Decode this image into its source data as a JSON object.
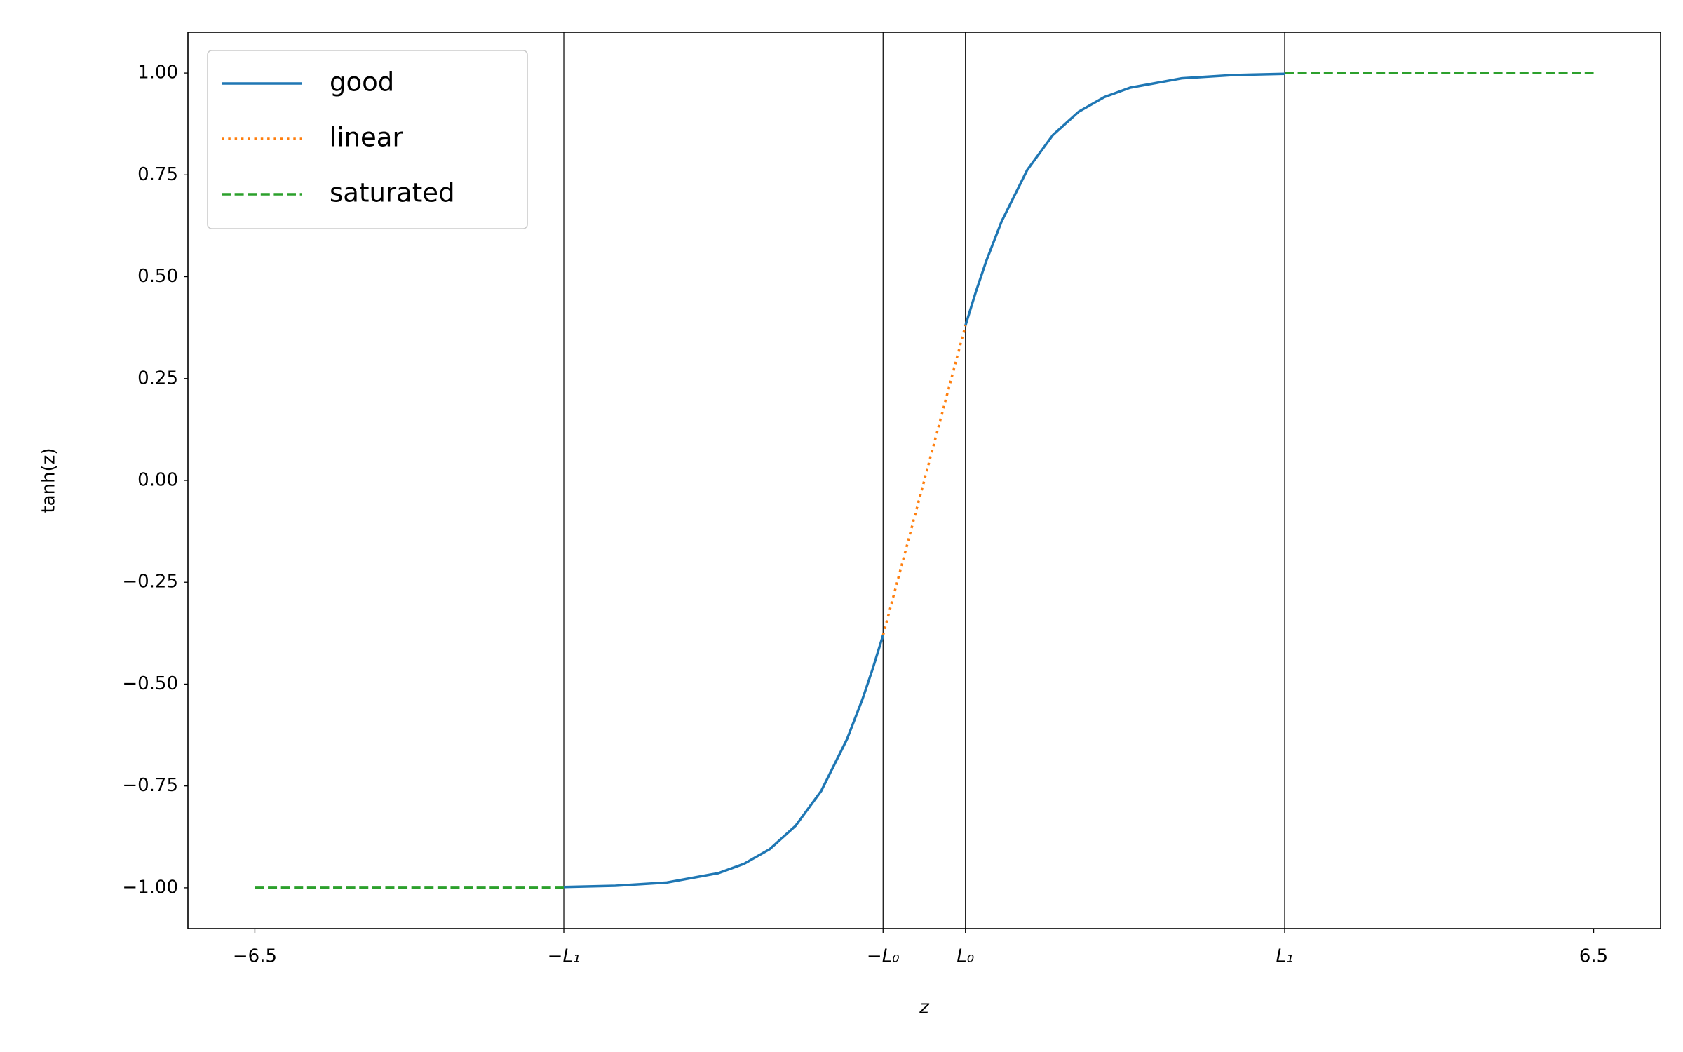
{
  "chart_data": {
    "type": "line",
    "xlabel": "z",
    "ylabel": "tanh(z)",
    "xlim": [
      -7.15,
      7.15
    ],
    "ylim": [
      -1.1,
      1.1
    ],
    "xticks": [
      {
        "value": -6.5,
        "label": "−6.5"
      },
      {
        "value": -3.5,
        "label": "−L₁"
      },
      {
        "value": -0.4,
        "label": "−L₀"
      },
      {
        "value": 0.4,
        "label": "L₀"
      },
      {
        "value": 3.5,
        "label": "L₁"
      },
      {
        "value": 6.5,
        "label": "6.5"
      }
    ],
    "yticks": [
      {
        "value": -1,
        "label": "−1.00"
      },
      {
        "value": -0.75,
        "label": "−0.75"
      },
      {
        "value": -0.5,
        "label": "−0.50"
      },
      {
        "value": -0.25,
        "label": "−0.25"
      },
      {
        "value": 0,
        "label": "0.00"
      },
      {
        "value": 0.25,
        "label": "0.25"
      },
      {
        "value": 0.5,
        "label": "0.50"
      },
      {
        "value": 0.75,
        "label": "0.75"
      },
      {
        "value": 1,
        "label": "1.00"
      }
    ],
    "vlines": [
      -3.5,
      -0.4,
      0.4,
      3.5
    ],
    "legend": "upper left",
    "series": [
      {
        "name": "good",
        "color": "#1f77b4",
        "style": "solid",
        "x": [
          -3.5,
          -3,
          -2.5,
          -2,
          -1.75,
          -1.5,
          -1.25,
          -1,
          -0.75,
          -0.6,
          -0.5,
          -0.4,
          null,
          0.4,
          0.5,
          0.6,
          0.75,
          1,
          1.25,
          1.5,
          1.75,
          2,
          2.5,
          3,
          3.5
        ],
        "values": [
          -0.998,
          -0.995,
          -0.987,
          -0.964,
          -0.941,
          -0.905,
          -0.848,
          -0.762,
          -0.635,
          -0.537,
          -0.462,
          -0.38,
          null,
          0.38,
          0.462,
          0.537,
          0.635,
          0.762,
          0.848,
          0.905,
          0.941,
          0.964,
          0.987,
          0.995,
          0.998
        ]
      },
      {
        "name": "linear",
        "color": "#ff7f0e",
        "style": "dotted",
        "x": [
          -0.4,
          0.4
        ],
        "values": [
          -0.38,
          0.38
        ]
      },
      {
        "name": "saturated",
        "color": "#2ca02c",
        "style": "dashed",
        "x": [
          -6.5,
          -3.5,
          null,
          3.5,
          6.5
        ],
        "values": [
          -1,
          -1,
          null,
          1,
          1
        ]
      }
    ]
  }
}
